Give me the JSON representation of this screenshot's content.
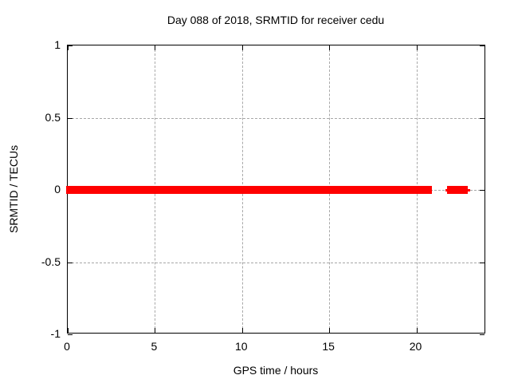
{
  "colors": {
    "background": "#ffffff",
    "axis": "#000000",
    "grid": "#a8a8a8",
    "data": "#ff0000"
  },
  "chart_data": {
    "type": "scatter",
    "title": "Day 088 of 2018, SRMTID for receiver cedu",
    "xlabel": "GPS time / hours",
    "ylabel": "SRMTID / TECUs",
    "xlim": [
      0,
      24
    ],
    "ylim": [
      -1,
      1
    ],
    "xticks": [
      0,
      5,
      10,
      15,
      20
    ],
    "xtick_labels": [
      "0",
      "5",
      "10",
      "15",
      "20"
    ],
    "yticks": [
      1,
      0.5,
      0,
      -0.5,
      -1
    ],
    "ytick_labels": [
      "1",
      "0.5",
      "0",
      "-0.5",
      "-1"
    ],
    "grid": true,
    "legend": "none",
    "series": [
      {
        "name": "SRMTID",
        "color": "#ff0000",
        "marker": "filled-square",
        "y_value": 0,
        "y_spread_dense": 0.028,
        "y_spread_sparse": 0.008,
        "time_segments": [
          {
            "start_hour": 0.0,
            "end_hour": 9.43,
            "density": "dense"
          },
          {
            "start_hour": 9.55,
            "end_hour": 11.83,
            "density": "dense"
          },
          {
            "start_hour": 11.95,
            "end_hour": 19.15,
            "density": "dense"
          },
          {
            "start_hour": 19.15,
            "end_hour": 19.3,
            "density": "sparse"
          },
          {
            "start_hour": 19.3,
            "end_hour": 19.93,
            "density": "dense"
          },
          {
            "start_hour": 19.93,
            "end_hour": 20.07,
            "density": "sparse"
          },
          {
            "start_hour": 20.07,
            "end_hour": 20.5,
            "density": "dense"
          },
          {
            "start_hour": 20.5,
            "end_hour": 20.62,
            "density": "sparse"
          },
          {
            "start_hour": 20.62,
            "end_hour": 20.8,
            "density": "dense"
          },
          {
            "start_hour": 21.77,
            "end_hour": 21.86,
            "density": "sparse"
          },
          {
            "start_hour": 21.86,
            "end_hour": 22.86,
            "density": "dense"
          },
          {
            "start_hour": 22.86,
            "end_hour": 22.99,
            "density": "sparse"
          }
        ]
      }
    ]
  }
}
